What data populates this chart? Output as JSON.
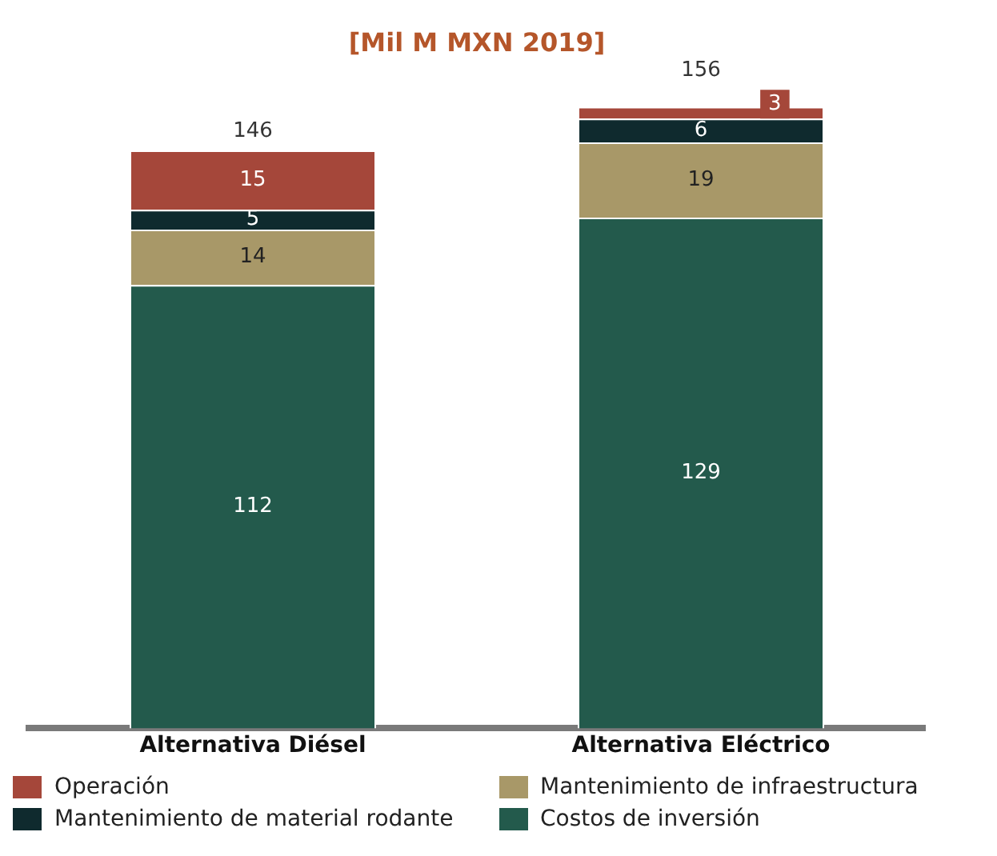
{
  "chart_data": {
    "type": "bar",
    "title": "[Mil M MXN 2019]",
    "stacked": true,
    "data_labels": true,
    "legend": "bottom",
    "grid": false,
    "categories": [
      "Alternativa Diésel",
      "Alternativa Eléctrico"
    ],
    "series": [
      {
        "name": "Costos de inversión",
        "color": "#235a4c",
        "values": [
          112,
          129
        ]
      },
      {
        "name": "Mantenimiento de infraestructura",
        "color": "#a89868",
        "values": [
          14,
          19
        ]
      },
      {
        "name": "Mantenimiento de material rodante",
        "color": "#0f2a2e",
        "values": [
          5,
          6
        ]
      },
      {
        "name": "Operación",
        "color": "#a5473a",
        "values": [
          15,
          3
        ]
      }
    ],
    "totals": [
      "146",
      "156"
    ]
  }
}
